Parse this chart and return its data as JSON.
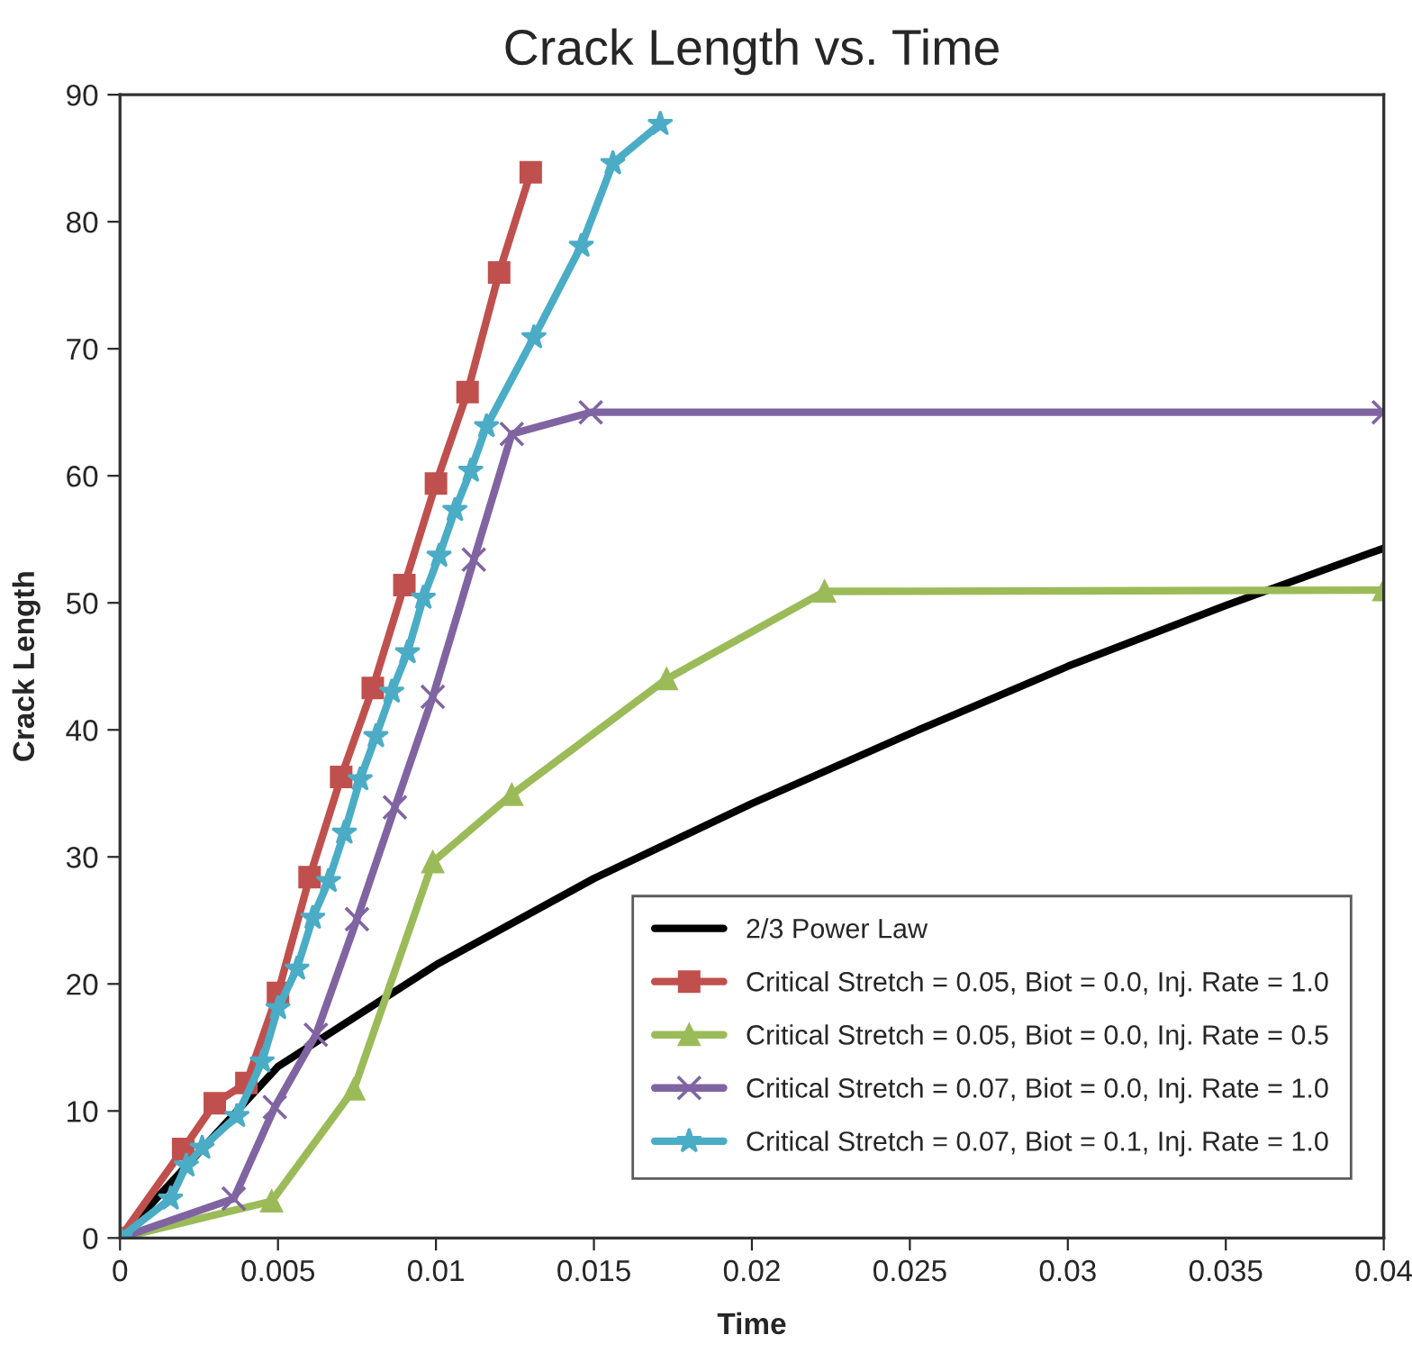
{
  "chart_data": {
    "type": "line",
    "title": "Crack Length vs. Time",
    "xlabel": "Time",
    "ylabel": "Crack Length",
    "xlim": [
      0,
      0.04
    ],
    "xticks": [
      0,
      0.005,
      0.01,
      0.015,
      0.02,
      0.025,
      0.03,
      0.035,
      0.04
    ],
    "ylim": [
      0,
      90
    ],
    "yticks": [
      0,
      10,
      20,
      30,
      40,
      50,
      60,
      70,
      80,
      90
    ],
    "grid": false,
    "legend": "bottom right",
    "line_style": "solid",
    "series": [
      {
        "name": "2/3 Power Law",
        "color": "#000000",
        "marker": "none",
        "x": [
          0,
          0.005,
          0.01,
          0.015,
          0.02,
          0.025,
          0.03,
          0.035,
          0.04
        ],
        "values": [
          0,
          13.5,
          21.5,
          28.3,
          34.2,
          39.7,
          45,
          49.8,
          54.3
        ]
      },
      {
        "name": "Critical Stretch = 0.05, Biot = 0.0, Inj. Rate = 1.0",
        "color": "#c0504d",
        "marker": "square",
        "x": [
          0,
          0.002,
          0.003,
          0.004,
          0.005,
          0.006,
          0.007,
          0.008,
          0.009,
          0.01,
          0.011,
          0.012,
          0.013
        ],
        "values": [
          0,
          7,
          10.6,
          12.2,
          19.3,
          28.4,
          36.3,
          43.3,
          51.4,
          59.4,
          66.6,
          76,
          83.9
        ]
      },
      {
        "name": "Critical Stretch = 0.05, Biot = 0.0, Inj. Rate = 0.5",
        "color": "#9bbb59",
        "marker": "triangle",
        "x": [
          0,
          0.0048,
          0.0074,
          0.0099,
          0.0124,
          0.0173,
          0.0223,
          0.04
        ],
        "values": [
          0,
          2.9,
          11.7,
          29.6,
          34.9,
          44,
          50.9,
          51
        ]
      },
      {
        "name": "Critical Stretch = 0.07, Biot = 0.0, Inj. Rate = 1.0",
        "color": "#8064a2",
        "marker": "cross",
        "x": [
          0,
          0.0036,
          0.0049,
          0.0062,
          0.0075,
          0.0087,
          0.0099,
          0.0112,
          0.0124,
          0.0149,
          0.04
        ],
        "values": [
          0,
          3.1,
          10.3,
          16,
          25.1,
          33.9,
          42.6,
          53.4,
          63.3,
          65,
          65
        ]
      },
      {
        "name": "Critical Stretch = 0.07, Biot = 0.1, Inj. Rate = 1.0",
        "color": "#4bacc6",
        "marker": "star",
        "x": [
          0,
          0.0016,
          0.0021,
          0.0026,
          0.0037,
          0.0045,
          0.005,
          0.0056,
          0.0061,
          0.0066,
          0.0071,
          0.0076,
          0.0081,
          0.0086,
          0.0091,
          0.0096,
          0.0101,
          0.0106,
          0.0111,
          0.0116,
          0.0131,
          0.0146,
          0.0156,
          0.0171
        ],
        "values": [
          0,
          3.1,
          5.7,
          7.1,
          9.6,
          13.9,
          18.1,
          21.2,
          25.2,
          28.1,
          31.9,
          36.1,
          39.5,
          43,
          46.1,
          50.4,
          53.7,
          57.3,
          60.4,
          63.9,
          70.9,
          78.1,
          84.6,
          87.7
        ]
      }
    ]
  }
}
